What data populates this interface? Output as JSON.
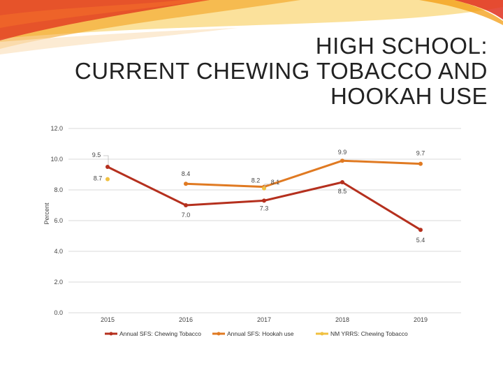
{
  "slide": {
    "title_lines": [
      "HIGH SCHOOL:",
      "CURRENT CHEWING TOBACCO AND",
      "HOOKAH USE"
    ]
  },
  "colors": {
    "swoosh_red": "#e0301e",
    "swoosh_orange": "#f39c12",
    "swoosh_yellow": "#f7c948"
  },
  "chart_data": {
    "type": "line",
    "ylabel": "Percent",
    "xlabel": "",
    "ylim": [
      0,
      12
    ],
    "yticks": [
      "0.0",
      "2.0",
      "4.0",
      "6.0",
      "8.0",
      "10.0",
      "12.0"
    ],
    "categories": [
      "2015",
      "2016",
      "2017",
      "2018",
      "2019"
    ],
    "grid": true,
    "legend_position": "bottom",
    "series": [
      {
        "name": "Annual SFS: Chewing Tobacco",
        "color": "#b5301e",
        "values": [
          9.5,
          7.0,
          7.3,
          8.5,
          5.4
        ],
        "labels": [
          "9.5",
          "7.0",
          "7.3",
          "8.5",
          "5.4"
        ]
      },
      {
        "name": "Annual SFS: Hookah use",
        "color": "#e07a22",
        "values": [
          null,
          8.4,
          8.2,
          9.9,
          9.7
        ],
        "labels": [
          "",
          "8.4",
          "8.2",
          "9.9",
          "9.7"
        ]
      },
      {
        "name": "NM YRRS: Chewing Tobacco",
        "color": "#f0c040",
        "values": [
          8.7,
          null,
          8.1,
          null,
          null
        ],
        "labels": [
          "8.7",
          "",
          "8.1",
          "",
          ""
        ]
      }
    ]
  }
}
